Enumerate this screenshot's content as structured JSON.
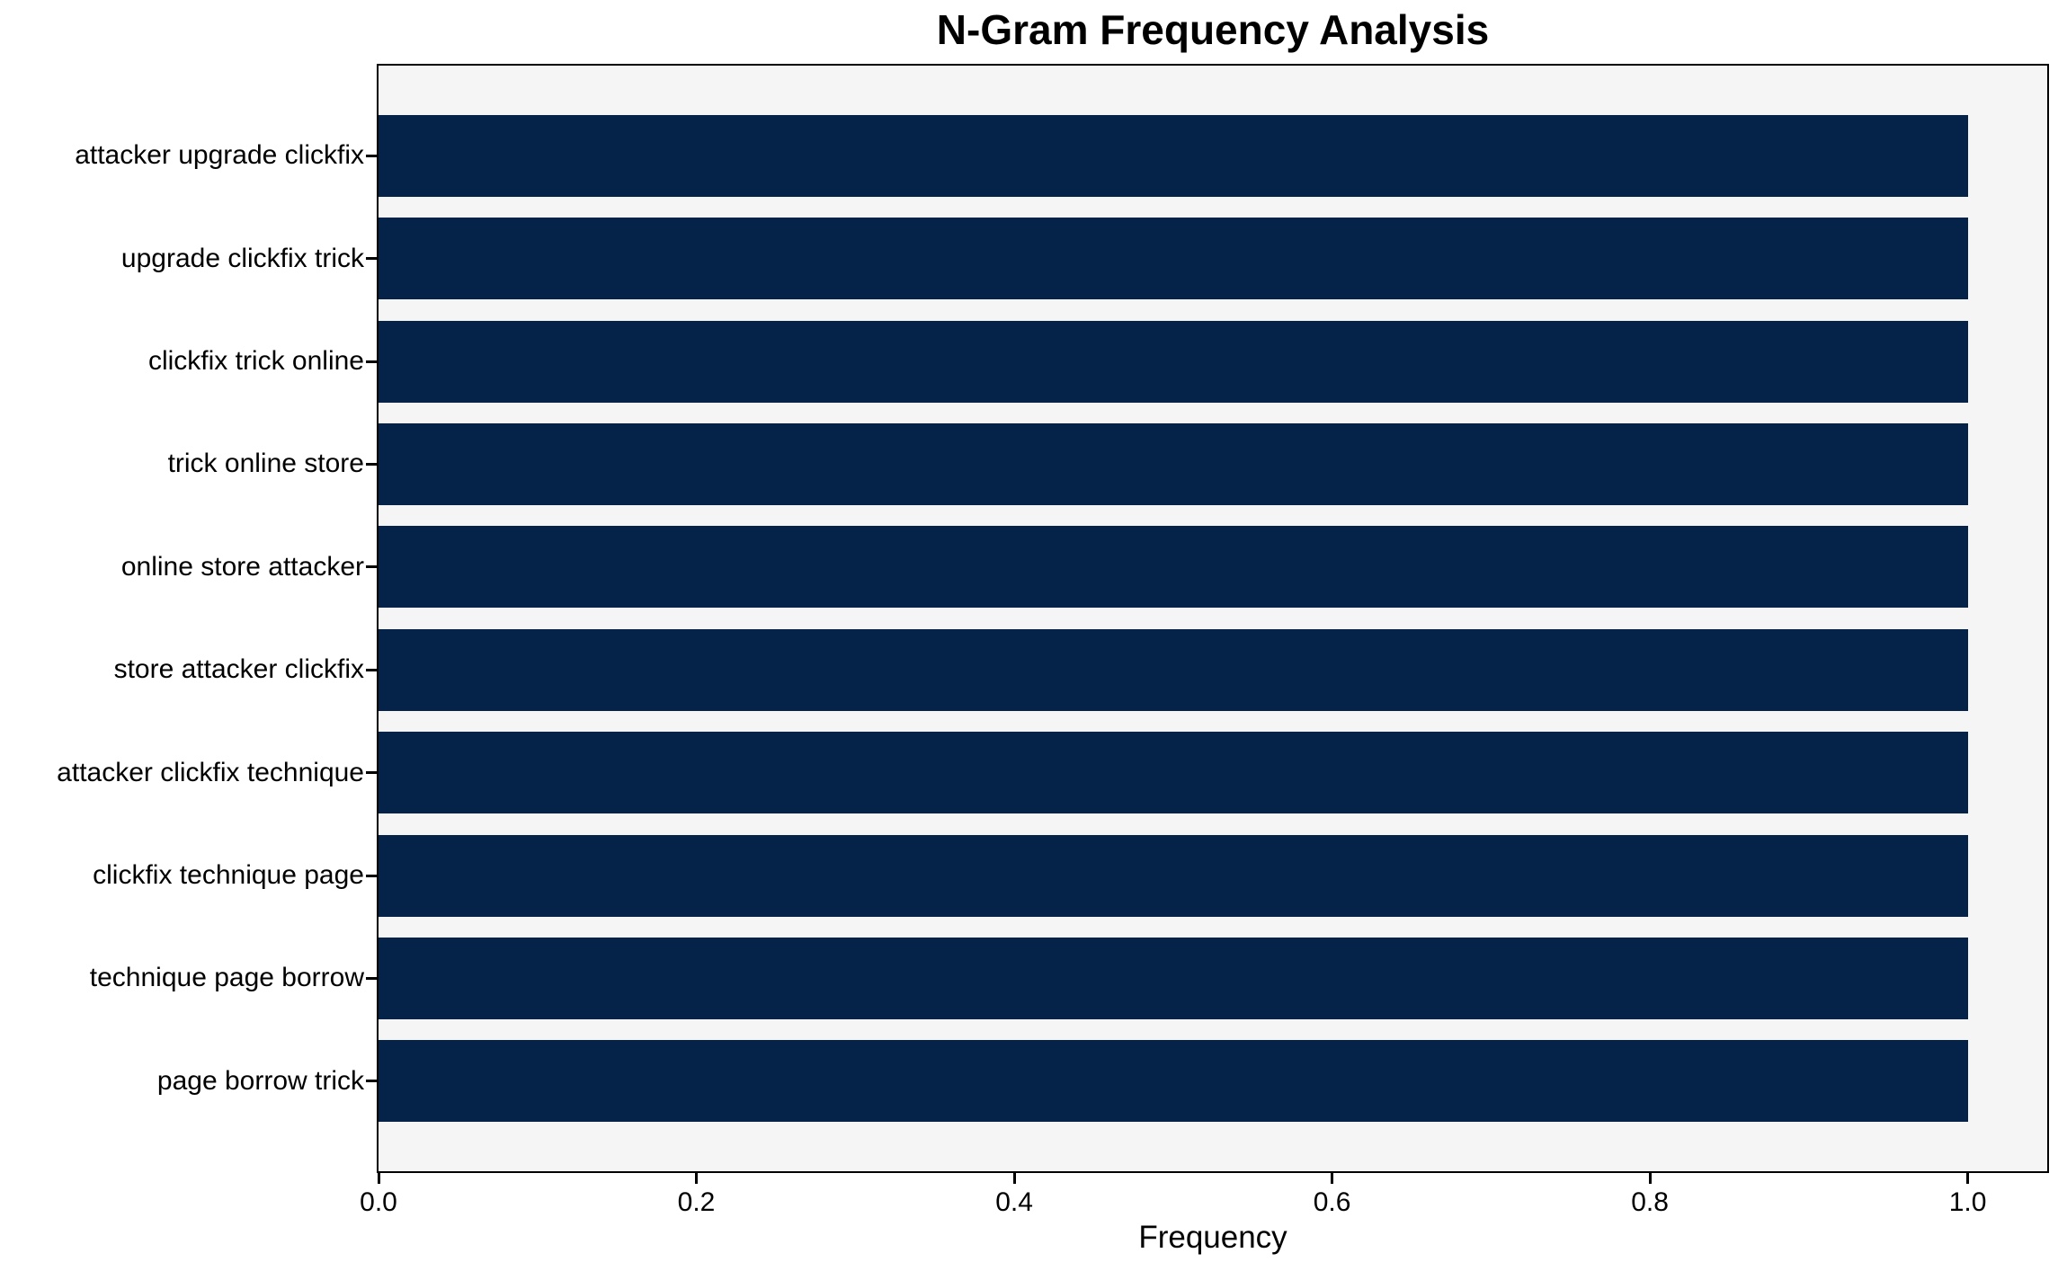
{
  "chart_data": {
    "type": "bar",
    "orientation": "horizontal",
    "title": "N-Gram Frequency Analysis",
    "xlabel": "Frequency",
    "ylabel": "",
    "categories": [
      "attacker upgrade clickfix",
      "upgrade clickfix trick",
      "clickfix trick online",
      "trick online store",
      "online store attacker",
      "store attacker clickfix",
      "attacker clickfix technique",
      "clickfix technique page",
      "technique page borrow",
      "page borrow trick"
    ],
    "values": [
      1.0,
      1.0,
      1.0,
      1.0,
      1.0,
      1.0,
      1.0,
      1.0,
      1.0,
      1.0
    ],
    "xticks": [
      0.0,
      0.2,
      0.4,
      0.6,
      0.8,
      1.0
    ],
    "xtick_labels": [
      "0.0",
      "0.2",
      "0.4",
      "0.6",
      "0.8",
      "1.0"
    ],
    "xlim": [
      0,
      1.05
    ],
    "grid": false,
    "legend": "none",
    "colors": {
      "bar": "#052349",
      "plot_bg": "#f5f5f5",
      "figure_bg": "#ffffff",
      "axis": "#000000",
      "text": "#000000"
    }
  }
}
